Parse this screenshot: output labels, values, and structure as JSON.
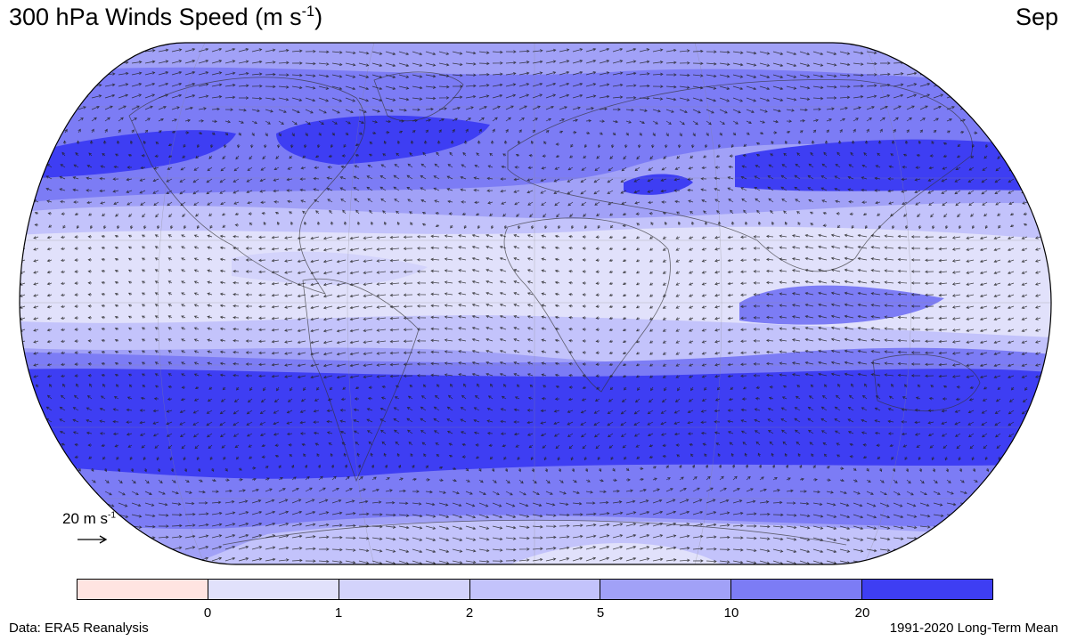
{
  "title": {
    "main": "300 hPa Winds Speed (m s",
    "exp": "-1",
    "close": ")"
  },
  "month": "Sep",
  "reference_vector": {
    "label": "20 m s",
    "exp": "-1"
  },
  "colorbar": {
    "ticks": [
      "0",
      "1",
      "2",
      "5",
      "10",
      "20"
    ],
    "colors": [
      "#ffe4e1",
      "#e1e1fb",
      "#d3d3fb",
      "#c3c3fb",
      "#a1a1f7",
      "#7c7cf5",
      "#3e3ef3"
    ]
  },
  "footer": {
    "source": "Data: ERA5 Reanalysis",
    "period": "1991-2020 Long-Term Mean"
  }
}
